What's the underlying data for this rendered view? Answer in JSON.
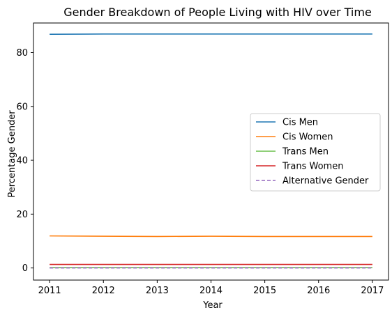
{
  "chart_data": {
    "type": "line",
    "title": "Gender Breakdown of People Living with HIV over Time",
    "xlabel": "Year",
    "ylabel": "Percentage Gender",
    "x": [
      2011,
      2012,
      2013,
      2014,
      2015,
      2016,
      2017
    ],
    "xlim": [
      2010.7,
      2017.3
    ],
    "ylim": [
      -4.5,
      91
    ],
    "x_ticks": [
      "2011",
      "2012",
      "2013",
      "2014",
      "2015",
      "2016",
      "2017"
    ],
    "y_ticks": [
      0,
      20,
      40,
      60,
      80
    ],
    "grid": false,
    "legend_position": "center-right",
    "series": [
      {
        "name": "Cis Men",
        "color": "#1f77b4",
        "dash": "solid",
        "values": [
          86.8,
          86.9,
          86.9,
          86.9,
          86.9,
          86.9,
          86.9
        ]
      },
      {
        "name": "Cis Women",
        "color": "#ff7f0e",
        "dash": "solid",
        "values": [
          11.9,
          11.8,
          11.7,
          11.8,
          11.7,
          11.7,
          11.7
        ]
      },
      {
        "name": "Trans Men",
        "color": "#6abf4b",
        "dash": "solid",
        "values": [
          0.1,
          0.1,
          0.1,
          0.1,
          0.1,
          0.1,
          0.1
        ]
      },
      {
        "name": "Trans Women",
        "color": "#d62728",
        "dash": "solid",
        "values": [
          1.3,
          1.3,
          1.3,
          1.3,
          1.3,
          1.3,
          1.3
        ]
      },
      {
        "name": "Alternative Gender",
        "color": "#9467bd",
        "dash": "dashed",
        "values": [
          0.0,
          0.0,
          0.0,
          0.0,
          0.0,
          0.0,
          0.0
        ]
      }
    ]
  }
}
